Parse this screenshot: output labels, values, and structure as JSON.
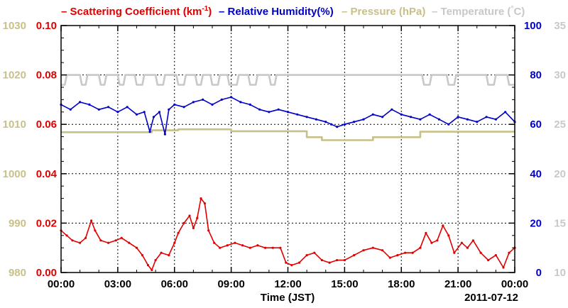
{
  "chart_data": {
    "type": "line",
    "legend": [
      {
        "dash": "–",
        "text": "Scattering Coefficient (km",
        "sup": "-1",
        "close": ")",
        "color": "#e00000"
      },
      {
        "dash": "–",
        "text": "Relative Humidity(%)",
        "color": "#0000c8"
      },
      {
        "dash": "–",
        "text": "Pressure (hPa)",
        "color": "#c8c08a"
      },
      {
        "dash": "–",
        "text": "Temperature (",
        "deg": "°",
        "close": "C)",
        "color": "#c8c8c8"
      }
    ],
    "xlabel": "Time (JST)",
    "date_label": "2011-07-12",
    "x_ticks": [
      "00:00",
      "03:00",
      "06:00",
      "09:00",
      "12:00",
      "15:00",
      "18:00",
      "21:00",
      "00:00"
    ],
    "x_range_hours": [
      0,
      24
    ],
    "grid": true,
    "axes": {
      "scattering": {
        "range": [
          0,
          0.1
        ],
        "ticks": [
          "0.00",
          "0.02",
          "0.04",
          "0.06",
          "0.08",
          "0.10"
        ],
        "color": "#e00000"
      },
      "pressure": {
        "range": [
          980,
          1030
        ],
        "ticks": [
          "980",
          "990",
          "1000",
          "1010",
          "1020",
          "1030"
        ],
        "color": "#c8c08a"
      },
      "humidity": {
        "range": [
          0,
          100
        ],
        "ticks": [
          "0",
          "20",
          "40",
          "60",
          "80",
          "100"
        ],
        "color": "#0000c8"
      },
      "temperature": {
        "range": [
          10,
          35
        ],
        "ticks": [
          "10",
          "15",
          "20",
          "25",
          "30",
          "35"
        ],
        "color": "#c8c8c8"
      }
    },
    "series": [
      {
        "name": "Scattering Coefficient",
        "axis": "scattering",
        "color": "#e00000",
        "markers": true,
        "points": [
          [
            0,
            0.017
          ],
          [
            0.3,
            0.015
          ],
          [
            0.6,
            0.013
          ],
          [
            1.0,
            0.012
          ],
          [
            1.3,
            0.014
          ],
          [
            1.6,
            0.021
          ],
          [
            1.8,
            0.017
          ],
          [
            2.1,
            0.013
          ],
          [
            2.5,
            0.012
          ],
          [
            2.9,
            0.013
          ],
          [
            3.2,
            0.014
          ],
          [
            3.6,
            0.012
          ],
          [
            4.0,
            0.01
          ],
          [
            4.3,
            0.007
          ],
          [
            4.6,
            0.003
          ],
          [
            4.8,
            0.001
          ],
          [
            5.0,
            0.005
          ],
          [
            5.3,
            0.008
          ],
          [
            5.7,
            0.007
          ],
          [
            6.0,
            0.012
          ],
          [
            6.2,
            0.016
          ],
          [
            6.5,
            0.02
          ],
          [
            6.8,
            0.023
          ],
          [
            7.0,
            0.018
          ],
          [
            7.2,
            0.022
          ],
          [
            7.4,
            0.03
          ],
          [
            7.6,
            0.028
          ],
          [
            7.8,
            0.017
          ],
          [
            8.1,
            0.012
          ],
          [
            8.4,
            0.01
          ],
          [
            8.8,
            0.011
          ],
          [
            9.2,
            0.012
          ],
          [
            9.6,
            0.011
          ],
          [
            10.0,
            0.01
          ],
          [
            10.4,
            0.011
          ],
          [
            10.8,
            0.01
          ],
          [
            11.2,
            0.01
          ],
          [
            11.6,
            0.01
          ],
          [
            11.9,
            0.004
          ],
          [
            12.2,
            0.003
          ],
          [
            12.6,
            0.004
          ],
          [
            13.0,
            0.007
          ],
          [
            13.4,
            0.008
          ],
          [
            13.8,
            0.005
          ],
          [
            14.2,
            0.004
          ],
          [
            14.6,
            0.005
          ],
          [
            15.0,
            0.005
          ],
          [
            15.5,
            0.007
          ],
          [
            16.0,
            0.009
          ],
          [
            16.5,
            0.01
          ],
          [
            17.0,
            0.009
          ],
          [
            17.4,
            0.006
          ],
          [
            17.8,
            0.007
          ],
          [
            18.2,
            0.008
          ],
          [
            18.6,
            0.008
          ],
          [
            19.0,
            0.01
          ],
          [
            19.3,
            0.016
          ],
          [
            19.6,
            0.012
          ],
          [
            19.9,
            0.013
          ],
          [
            20.2,
            0.019
          ],
          [
            20.5,
            0.015
          ],
          [
            20.8,
            0.008
          ],
          [
            21.2,
            0.012
          ],
          [
            21.5,
            0.01
          ],
          [
            21.8,
            0.013
          ],
          [
            22.2,
            0.008
          ],
          [
            22.6,
            0.005
          ],
          [
            23.0,
            0.007
          ],
          [
            23.4,
            0.002
          ],
          [
            23.7,
            0.008
          ],
          [
            24.0,
            0.01
          ]
        ]
      },
      {
        "name": "Relative Humidity",
        "axis": "humidity",
        "color": "#0000c8",
        "markers": true,
        "points": [
          [
            0,
            68
          ],
          [
            0.5,
            66
          ],
          [
            1.0,
            69
          ],
          [
            1.5,
            68
          ],
          [
            2.0,
            66
          ],
          [
            2.5,
            67
          ],
          [
            3.0,
            65
          ],
          [
            3.5,
            67
          ],
          [
            4.0,
            64
          ],
          [
            4.4,
            65
          ],
          [
            4.7,
            57
          ],
          [
            4.9,
            63
          ],
          [
            5.2,
            65
          ],
          [
            5.5,
            56
          ],
          [
            5.7,
            66
          ],
          [
            6.0,
            68
          ],
          [
            6.5,
            67
          ],
          [
            7.0,
            69
          ],
          [
            7.5,
            70
          ],
          [
            8.0,
            68
          ],
          [
            8.5,
            70
          ],
          [
            9.0,
            71
          ],
          [
            9.5,
            69
          ],
          [
            10.0,
            68
          ],
          [
            10.5,
            66
          ],
          [
            11.0,
            65
          ],
          [
            11.5,
            66
          ],
          [
            12.0,
            65
          ],
          [
            12.5,
            64
          ],
          [
            13.0,
            63
          ],
          [
            13.5,
            62
          ],
          [
            14.0,
            61
          ],
          [
            14.3,
            60
          ],
          [
            14.6,
            59
          ],
          [
            15.0,
            60
          ],
          [
            15.5,
            61
          ],
          [
            16.0,
            62
          ],
          [
            16.5,
            64
          ],
          [
            17.0,
            63
          ],
          [
            17.5,
            66
          ],
          [
            18.0,
            64
          ],
          [
            18.5,
            63
          ],
          [
            19.0,
            62
          ],
          [
            19.5,
            64
          ],
          [
            20.0,
            62
          ],
          [
            20.5,
            60
          ],
          [
            21.0,
            63
          ],
          [
            21.5,
            62
          ],
          [
            22.0,
            61
          ],
          [
            22.5,
            63
          ],
          [
            23.0,
            62
          ],
          [
            23.5,
            65
          ],
          [
            24.0,
            61
          ]
        ]
      },
      {
        "name": "Pressure",
        "axis": "pressure",
        "color": "#c8c08a",
        "markers": false,
        "points": [
          [
            0,
            1008.4
          ],
          [
            4.8,
            1008.4
          ],
          [
            4.8,
            1008.8
          ],
          [
            6.2,
            1008.8
          ],
          [
            6.2,
            1009.0
          ],
          [
            9.0,
            1009.0
          ],
          [
            9.0,
            1008.6
          ],
          [
            13.0,
            1008.6
          ],
          [
            13.0,
            1007.4
          ],
          [
            13.8,
            1007.4
          ],
          [
            13.8,
            1006.8
          ],
          [
            16.5,
            1006.8
          ],
          [
            16.5,
            1007.4
          ],
          [
            19.0,
            1007.4
          ],
          [
            19.0,
            1008.5
          ],
          [
            24.0,
            1008.5
          ]
        ]
      },
      {
        "name": "Temperature",
        "axis": "temperature",
        "color": "#c8c8c8",
        "markers": false,
        "points": [
          [
            0,
            29.0
          ],
          [
            0.2,
            29.0
          ],
          [
            0.3,
            30.0
          ],
          [
            1.0,
            30.0
          ],
          [
            1.1,
            29.0
          ],
          [
            1.3,
            29.0
          ],
          [
            1.4,
            30.0
          ],
          [
            2.0,
            30.0
          ],
          [
            2.1,
            29.0
          ],
          [
            2.3,
            29.0
          ],
          [
            2.4,
            30.0
          ],
          [
            3.0,
            30.0
          ],
          [
            3.1,
            29.0
          ],
          [
            3.3,
            29.0
          ],
          [
            3.4,
            30.0
          ],
          [
            3.9,
            30.0
          ],
          [
            4.0,
            29.0
          ],
          [
            4.3,
            29.0
          ],
          [
            4.4,
            30.0
          ],
          [
            5.0,
            30.0
          ],
          [
            5.1,
            29.0
          ],
          [
            5.4,
            29.0
          ],
          [
            5.5,
            30.0
          ],
          [
            6.1,
            30.0
          ],
          [
            6.2,
            29.0
          ],
          [
            6.5,
            29.0
          ],
          [
            6.6,
            30.0
          ],
          [
            7.1,
            30.0
          ],
          [
            7.2,
            29.0
          ],
          [
            7.4,
            29.0
          ],
          [
            7.5,
            30.0
          ],
          [
            7.9,
            30.0
          ],
          [
            8.0,
            29.0
          ],
          [
            8.3,
            29.0
          ],
          [
            8.4,
            30.0
          ],
          [
            8.8,
            30.0
          ],
          [
            8.9,
            29.0
          ],
          [
            9.3,
            29.0
          ],
          [
            9.4,
            30.0
          ],
          [
            9.9,
            30.0
          ],
          [
            10.0,
            29.0
          ],
          [
            10.3,
            29.0
          ],
          [
            10.4,
            30.0
          ],
          [
            11.0,
            30.0
          ],
          [
            11.1,
            29.0
          ],
          [
            11.3,
            29.0
          ],
          [
            11.4,
            30.0
          ],
          [
            19.1,
            30.0
          ],
          [
            19.2,
            29.0
          ],
          [
            19.5,
            29.0
          ],
          [
            19.6,
            30.0
          ],
          [
            20.4,
            30.0
          ],
          [
            20.5,
            29.0
          ],
          [
            20.8,
            29.0
          ],
          [
            20.9,
            30.0
          ],
          [
            22.5,
            30.0
          ],
          [
            22.6,
            29.0
          ],
          [
            22.9,
            29.0
          ],
          [
            23.0,
            30.0
          ],
          [
            23.6,
            30.0
          ],
          [
            23.7,
            29.0
          ],
          [
            24.0,
            29.0
          ]
        ]
      }
    ]
  }
}
